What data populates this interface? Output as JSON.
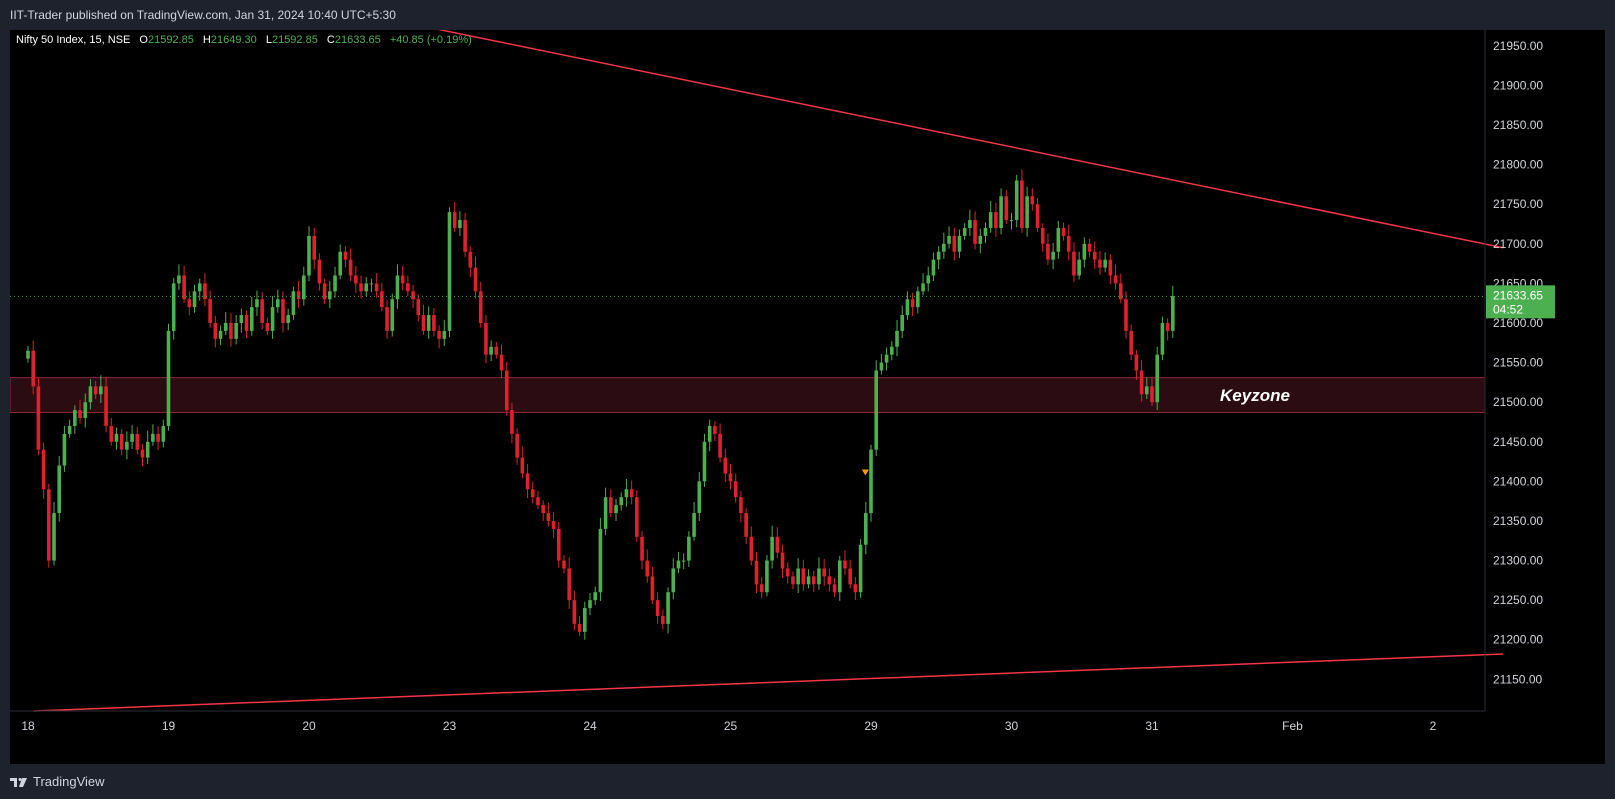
{
  "publish_line": "IIT-Trader published on TradingView.com, Jan 31, 2024 10:40 UTC+5:30",
  "legend": {
    "symbol": "Nifty 50 Index, 15, NSE",
    "o_label": "O",
    "o_value": "21592.85",
    "h_label": "H",
    "h_value": "21649.30",
    "l_label": "L",
    "l_value": "21592.85",
    "c_label": "C",
    "c_value": "21633.65",
    "change": "+40.85 (+0.19%)"
  },
  "footer": {
    "brand": "TradingView",
    "logo_icon": "tradingview-logo-icon"
  },
  "colors": {
    "background": "#000000",
    "up": "#4caf50",
    "down": "#e0202c",
    "trendline": "#f23645",
    "zone_fill": "#2a0c12",
    "zone_border": "#8a2a34",
    "price_tag": "#4caf50",
    "marker": "#ff9800"
  },
  "chart_data": {
    "type": "candlestick",
    "symbol": "Nifty 50 Index",
    "timeframe": "15",
    "exchange": "NSE",
    "ylim": [
      21110,
      21970
    ],
    "y_ticks": [
      "21950.00",
      "21900.00",
      "21850.00",
      "21800.00",
      "21750.00",
      "21700.00",
      "21650.00",
      "21600.00",
      "21550.00",
      "21500.00",
      "21450.00",
      "21400.00",
      "21350.00",
      "21300.00",
      "21250.00",
      "21200.00",
      "21150.00"
    ],
    "x_ticks": [
      "18",
      "19",
      "20",
      "23",
      "24",
      "25",
      "29",
      "30",
      "31",
      "Feb",
      "2"
    ],
    "current_price": "21633.65",
    "countdown": "04:52",
    "zone": {
      "label": "Keyzone",
      "low": 21487,
      "high": 21531
    },
    "trendlines": [
      {
        "name": "upper",
        "from": {
          "day_index": 2.53,
          "price": 21985
        },
        "to": {
          "day_index": 10.5,
          "price": 21695
        }
      },
      {
        "name": "lower",
        "from": {
          "day_index": 0.04,
          "price": 21110
        },
        "to": {
          "day_index": 10.5,
          "price": 21182
        }
      }
    ],
    "marker": {
      "day_index": 5.96,
      "price": 21410,
      "shape": "triangle-down"
    },
    "days": [
      {
        "label": "18",
        "closes": [
          21565,
          21520,
          21440,
          21390,
          21300,
          21360,
          21420,
          21460,
          21470,
          21490,
          21480,
          21500,
          21520,
          21510,
          21520,
          21470,
          21450,
          21460,
          21440,
          21450,
          21460,
          21440,
          21430,
          21450,
          21460,
          21450,
          21470
        ]
      },
      {
        "label": "19",
        "closes": [
          21590,
          21650,
          21660,
          21630,
          21620,
          21640,
          21650,
          21630,
          21600,
          21580,
          21590,
          21600,
          21580,
          21600,
          21610,
          21590,
          21620,
          21630,
          21600,
          21590,
          21620,
          21630,
          21600,
          21610,
          21640,
          21630,
          21660
        ]
      },
      {
        "label": "20",
        "closes": [
          21710,
          21680,
          21650,
          21630,
          21640,
          21660,
          21690,
          21680,
          21660,
          21650,
          21640,
          21650,
          21650,
          21640,
          21620,
          21590,
          21630,
          21660,
          21650,
          21640,
          21630,
          21610,
          21590,
          21610,
          21590,
          21580,
          21590
        ]
      },
      {
        "label": "23",
        "closes": [
          21740,
          21720,
          21730,
          21690,
          21670,
          21640,
          21600,
          21560,
          21570,
          21560,
          21540,
          21490,
          21460,
          21430,
          21410,
          21390,
          21380,
          21370,
          21360,
          21350,
          21340,
          21300,
          21290,
          21250,
          21220,
          21210,
          21240
        ]
      },
      {
        "label": "24",
        "closes": [
          21250,
          21260,
          21340,
          21380,
          21360,
          21370,
          21380,
          21390,
          21380,
          21330,
          21300,
          21280,
          21250,
          21230,
          21220,
          21260,
          21290,
          21300,
          21300,
          21330,
          21360,
          21400,
          21450,
          21470,
          21460,
          21430,
          21410
        ]
      },
      {
        "label": "25",
        "closes": [
          21400,
          21380,
          21360,
          21330,
          21300,
          21270,
          21260,
          21300,
          21330,
          21310,
          21290,
          21280,
          21270,
          21290,
          21270,
          21280,
          21270,
          21290,
          21280,
          21270,
          21260,
          21300,
          21290,
          21270,
          21260,
          21320,
          21360
        ]
      },
      {
        "label": "29",
        "closes": [
          21440,
          21540,
          21550,
          21560,
          21570,
          21590,
          21610,
          21630,
          21620,
          21640,
          21650,
          21660,
          21680,
          21690,
          21700,
          21710,
          21690,
          21710,
          21720,
          21730,
          21700,
          21710,
          21720,
          21740,
          21720,
          21760,
          21730
        ]
      },
      {
        "label": "30",
        "closes": [
          21730,
          21780,
          21720,
          21760,
          21750,
          21720,
          21700,
          21680,
          21690,
          21720,
          21710,
          21690,
          21660,
          21680,
          21700,
          21690,
          21680,
          21670,
          21680,
          21660,
          21650,
          21630,
          21590,
          21560,
          21540,
          21510,
          21520
        ]
      },
      {
        "label": "31",
        "closes": [
          21500,
          21560,
          21600,
          21590,
          21634
        ]
      }
    ]
  }
}
